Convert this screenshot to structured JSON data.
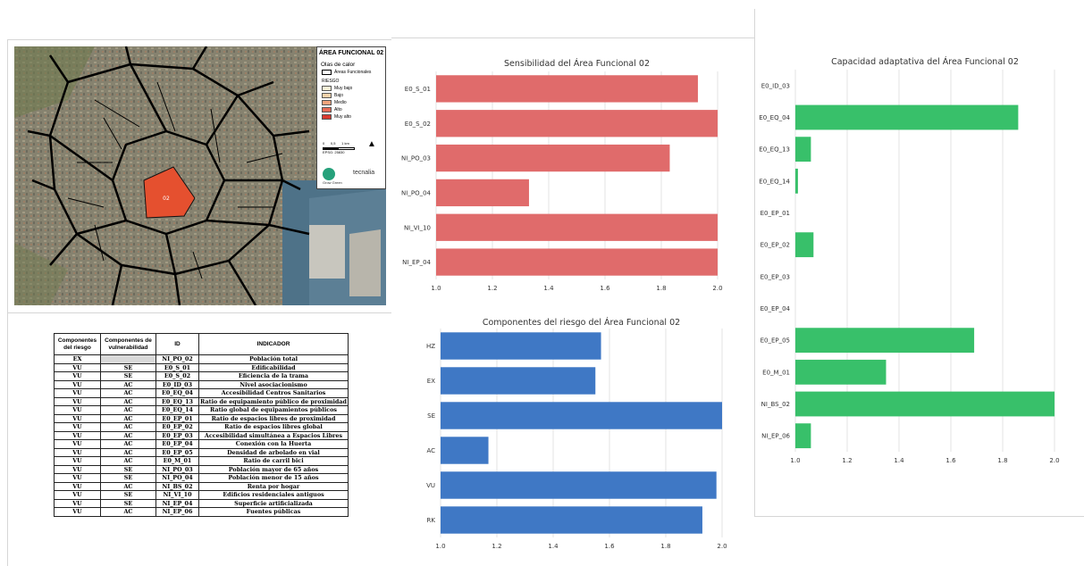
{
  "map": {
    "legend_title": "ÁREA FUNCIONAL 02",
    "legend_subtitle": "Olas de calor",
    "legend_outline_label": "Áreas Funcionales",
    "legend_risk_heading": "RIESGO",
    "legend_items": [
      {
        "label": "Muy bajo",
        "color": "#f7f1d7"
      },
      {
        "label": "Bajo",
        "color": "#f6d3ab"
      },
      {
        "label": "Medio",
        "color": "#f2a37c"
      },
      {
        "label": "Alto",
        "color": "#e96a55"
      },
      {
        "label": "Muy alto",
        "color": "#d93a2f"
      }
    ],
    "scale_ticks": "0      0,5      1 km",
    "scale_epsg": "EPSG: 25830",
    "logo_brand": "tecnalia",
    "logo_partner": "Grow  Green",
    "area_label": "02"
  },
  "table": {
    "headers": [
      "Componentes del riesgo",
      "Componentes de vulnerabilidad",
      "ID",
      "INDICADOR"
    ],
    "rows": [
      [
        "EX",
        "",
        "NI_PO_02",
        "Población total"
      ],
      [
        "VU",
        "SE",
        "E0_S_01",
        "Edificabilidad"
      ],
      [
        "VU",
        "SE",
        "E0_S_02",
        "Eficiencia de la trama"
      ],
      [
        "VU",
        "AC",
        "E0_ID_03",
        "Nivel asociacionismo"
      ],
      [
        "VU",
        "AC",
        "E0_EQ_04",
        "Accesibilidad Centros Sanitarios"
      ],
      [
        "VU",
        "AC",
        "E0_EQ_13",
        "Ratio de equipamiento público de proximidad"
      ],
      [
        "VU",
        "AC",
        "E0_EQ_14",
        "Ratio global de equipamientos públicos"
      ],
      [
        "VU",
        "AC",
        "E0_EP_01",
        "Ratio de espacios libres de proximidad"
      ],
      [
        "VU",
        "AC",
        "E0_EP_02",
        "Ratio de espacios libres global"
      ],
      [
        "VU",
        "AC",
        "E0_EP_03",
        "Accesibilidad simultánea a Espacios Libres"
      ],
      [
        "VU",
        "AC",
        "E0_EP_04",
        "Conexión con la Huerta"
      ],
      [
        "VU",
        "AC",
        "E0_EP_05",
        "Densidad de arbolado en vial"
      ],
      [
        "VU",
        "AC",
        "E0_M_01",
        "Ratio de carril bici"
      ],
      [
        "VU",
        "SE",
        "NI_PO_03",
        "Población mayor de 65 años"
      ],
      [
        "VU",
        "SE",
        "NI_PO_04",
        "Población menor de 15 años"
      ],
      [
        "VU",
        "AC",
        "NI_BS_02",
        "Renta por hogar"
      ],
      [
        "VU",
        "SE",
        "NI_VI_10",
        "Edificios residenciales antiguos"
      ],
      [
        "VU",
        "SE",
        "NI_EP_04",
        "Superficie artificializada"
      ],
      [
        "VU",
        "AC",
        "NI_EP_06",
        "Fuentes públicas"
      ]
    ]
  },
  "chart_data": [
    {
      "type": "bar",
      "orientation": "horizontal",
      "title": "Sensibilidad del Área Funcional 02",
      "categories": [
        "E0_S_01",
        "E0_S_02",
        "NI_PO_03",
        "NI_PO_04",
        "NI_VI_10",
        "NI_EP_04"
      ],
      "values": [
        1.93,
        2.0,
        1.83,
        1.33,
        2.0,
        2.0
      ],
      "xlim": [
        1.0,
        2.0
      ],
      "xticks": [
        "1.0",
        "1.2",
        "1.4",
        "1.6",
        "1.8",
        "2.0"
      ],
      "grid": true,
      "color": "#e06b6b"
    },
    {
      "type": "bar",
      "orientation": "horizontal",
      "title": "Componentes del riesgo del Área Funcional 02",
      "categories": [
        "HZ",
        "EX",
        "SE",
        "AC",
        "VU",
        "RK"
      ],
      "values": [
        1.57,
        1.55,
        2.0,
        1.17,
        1.98,
        1.93
      ],
      "xlim": [
        1.0,
        2.0
      ],
      "xticks": [
        "1.0",
        "1.2",
        "1.4",
        "1.6",
        "1.8",
        "2.0"
      ],
      "grid": true,
      "color": "#3f78c5"
    },
    {
      "type": "bar",
      "orientation": "horizontal",
      "title": "Capacidad adaptativa del Área Funcional 02",
      "categories": [
        "E0_ID_03",
        "E0_EQ_04",
        "E0_EQ_13",
        "E0_EQ_14",
        "E0_EP_01",
        "E0_EP_02",
        "E0_EP_03",
        "E0_EP_04",
        "E0_EP_05",
        "E0_M_01",
        "NI_BS_02",
        "NI_EP_06"
      ],
      "values": [
        1.0,
        1.86,
        1.06,
        1.01,
        1.0,
        1.07,
        1.0,
        1.0,
        1.69,
        1.35,
        2.0,
        1.06
      ],
      "xlim": [
        1.0,
        2.0
      ],
      "xticks": [
        "1.0",
        "1.2",
        "1.4",
        "1.6",
        "1.8",
        "2.0"
      ],
      "grid": true,
      "color": "#38c06a"
    }
  ]
}
